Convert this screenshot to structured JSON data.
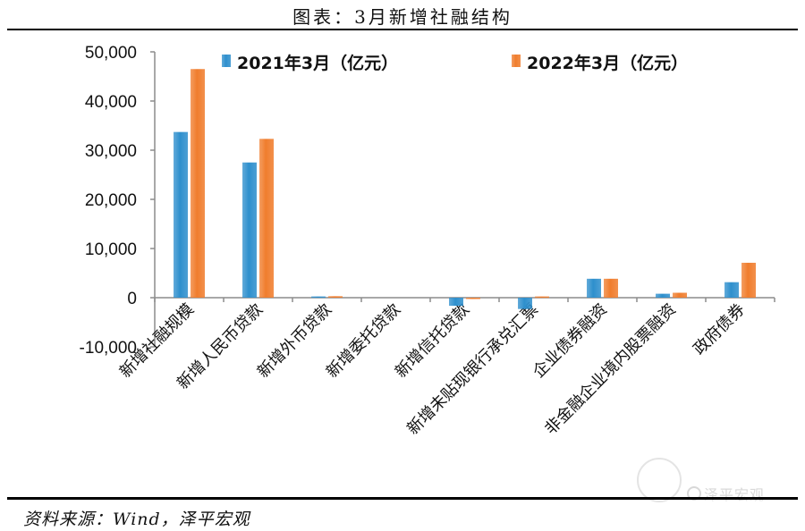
{
  "header": {
    "title": "图表：3月新增社融结构"
  },
  "footer": {
    "source": "资料来源：Wind，泽平宏观",
    "watermark": "泽平宏观"
  },
  "colors": {
    "series_2021": "#2e8fcd",
    "series_2022": "#f07d2d"
  },
  "chart_data": {
    "type": "bar",
    "title": "图表：3月新增社融结构",
    "xlabel": "",
    "ylabel": "",
    "categories": [
      "新增社融规模",
      "新增人民币贷款",
      "新增外币贷款",
      "新增委托贷款",
      "新增信托贷款",
      "新增未贴现银行承兑汇票",
      "企业债券融资",
      "非金融企业境内股票融资",
      "政府债券"
    ],
    "series": [
      {
        "name": "2021年3月（亿元）",
        "values": [
          33700,
          27500,
          250,
          0,
          -1650,
          -2300,
          3850,
          800,
          3150
        ]
      },
      {
        "name": "2022年3月（亿元）",
        "values": [
          46500,
          32300,
          300,
          0,
          -200,
          250,
          3850,
          1000,
          7100
        ]
      }
    ],
    "yticks": [
      50000,
      40000,
      30000,
      20000,
      10000,
      0,
      -10000
    ],
    "ytick_labels": [
      "50,000",
      "40,000",
      "30,000",
      "20,000",
      "10,000",
      "0",
      "-10,000"
    ],
    "ylim": [
      -10000,
      50000
    ],
    "grid": false,
    "legend_position": "top"
  }
}
